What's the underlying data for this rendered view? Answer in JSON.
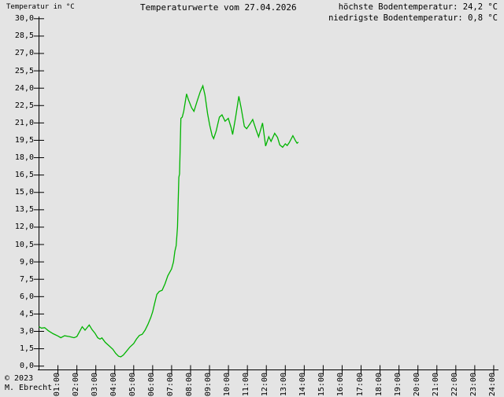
{
  "header": {
    "y_axis_title": "Temperatur in °C",
    "title": "Temperaturwerte vom 27.04.2026",
    "max_label": "höchste Bodentemperatur: 24,2 °C",
    "min_label": "niedrigste Bodentemperatur: 0,8 °C"
  },
  "footer": {
    "copyright": "© 2023",
    "author": "M. Ebrecht"
  },
  "colors": {
    "background": "#e4e4e4",
    "line": "#00b400",
    "axis": "#000000",
    "text": "#000000"
  },
  "chart_data": {
    "type": "line",
    "title": "Temperaturwerte vom 27.04.2026",
    "ylabel": "Temperatur in °C",
    "xlabel": "",
    "grid": false,
    "legend_position": "none",
    "ylim": [
      0.0,
      30.0
    ],
    "y_tick_step": 1.5,
    "y_tick_labels": [
      "0,0",
      "1,5",
      "3,0",
      "4,5",
      "6,0",
      "7,5",
      "9,0",
      "10,5",
      "12,0",
      "13,5",
      "15,0",
      "16,5",
      "18,0",
      "19,5",
      "21,0",
      "22,5",
      "24,0",
      "25,5",
      "27,0",
      "28,5",
      "30,0"
    ],
    "xlim_hours": [
      0,
      24
    ],
    "x_tick_hours": [
      1,
      2,
      3,
      4,
      5,
      6,
      7,
      8,
      9,
      10,
      11,
      12,
      13,
      14,
      15,
      16,
      17,
      18,
      19,
      20,
      21,
      22,
      23,
      24
    ],
    "x_tick_labels": [
      "01:00",
      "02:00",
      "03:00",
      "04:00",
      "05:00",
      "06:00",
      "07:00",
      "08:00",
      "09:00",
      "10:00",
      "11:00",
      "12:00",
      "13:00",
      "14:00",
      "15:00",
      "16:00",
      "17:00",
      "18:00",
      "19:00",
      "20:00",
      "21:00",
      "22:00",
      "23:00",
      "24:00"
    ],
    "stats": {
      "max_c": "24,2",
      "min_c": "0,8"
    },
    "series": [
      {
        "name": "Bodentemperatur",
        "color": "#00b400",
        "points_hours_degc": [
          [
            0,
            3.4
          ],
          [
            0.13,
            3.28
          ],
          [
            0.3,
            3.32
          ],
          [
            0.5,
            3.05
          ],
          [
            0.75,
            2.8
          ],
          [
            1,
            2.6
          ],
          [
            1.15,
            2.45
          ],
          [
            1.35,
            2.62
          ],
          [
            1.6,
            2.55
          ],
          [
            1.85,
            2.45
          ],
          [
            2,
            2.55
          ],
          [
            2.1,
            2.85
          ],
          [
            2.28,
            3.4
          ],
          [
            2.43,
            3.1
          ],
          [
            2.65,
            3.55
          ],
          [
            2.8,
            3.15
          ],
          [
            2.95,
            2.85
          ],
          [
            3.1,
            2.45
          ],
          [
            3.22,
            2.33
          ],
          [
            3.32,
            2.44
          ],
          [
            3.5,
            2.05
          ],
          [
            3.7,
            1.75
          ],
          [
            3.9,
            1.45
          ],
          [
            4.05,
            1.1
          ],
          [
            4.2,
            0.85
          ],
          [
            4.32,
            0.8
          ],
          [
            4.45,
            0.95
          ],
          [
            4.6,
            1.25
          ],
          [
            4.8,
            1.65
          ],
          [
            5,
            1.95
          ],
          [
            5.15,
            2.35
          ],
          [
            5.3,
            2.65
          ],
          [
            5.45,
            2.75
          ],
          [
            5.6,
            3.1
          ],
          [
            5.75,
            3.6
          ],
          [
            5.9,
            4.2
          ],
          [
            6,
            4.7
          ],
          [
            6.1,
            5.4
          ],
          [
            6.22,
            6.2
          ],
          [
            6.35,
            6.45
          ],
          [
            6.5,
            6.55
          ],
          [
            6.65,
            7.1
          ],
          [
            6.8,
            7.8
          ],
          [
            7,
            8.4
          ],
          [
            7.1,
            9
          ],
          [
            7.17,
            9.9
          ],
          [
            7.24,
            10.4
          ],
          [
            7.31,
            12
          ],
          [
            7.38,
            16.3
          ],
          [
            7.42,
            16.6
          ],
          [
            7.49,
            21.4
          ],
          [
            7.56,
            21.5
          ],
          [
            7.64,
            22
          ],
          [
            7.79,
            23.5
          ],
          [
            7.89,
            23
          ],
          [
            8.06,
            22.3
          ],
          [
            8.18,
            22
          ],
          [
            8.35,
            22.9
          ],
          [
            8.51,
            23.7
          ],
          [
            8.65,
            24.2
          ],
          [
            8.76,
            23.4
          ],
          [
            8.9,
            21.8
          ],
          [
            9.01,
            20.8
          ],
          [
            9.14,
            19.9
          ],
          [
            9.22,
            19.65
          ],
          [
            9.35,
            20.3
          ],
          [
            9.52,
            21.5
          ],
          [
            9.66,
            21.7
          ],
          [
            9.82,
            21.15
          ],
          [
            9.99,
            21.4
          ],
          [
            10.14,
            20.6
          ],
          [
            10.22,
            20
          ],
          [
            10.38,
            21.5
          ],
          [
            10.55,
            23.3
          ],
          [
            10.67,
            22.3
          ],
          [
            10.84,
            20.7
          ],
          [
            10.96,
            20.5
          ],
          [
            11.13,
            20.9
          ],
          [
            11.28,
            21.3
          ],
          [
            11.46,
            20.4
          ],
          [
            11.59,
            19.8
          ],
          [
            11.8,
            21
          ],
          [
            11.96,
            19
          ],
          [
            12.13,
            19.8
          ],
          [
            12.25,
            19.4
          ],
          [
            12.44,
            20.1
          ],
          [
            12.59,
            19.75
          ],
          [
            12.71,
            19.1
          ],
          [
            12.86,
            18.9
          ],
          [
            13,
            19.2
          ],
          [
            13.1,
            19.05
          ],
          [
            13.21,
            19.3
          ],
          [
            13.4,
            19.9
          ],
          [
            13.54,
            19.45
          ],
          [
            13.62,
            19.25
          ],
          [
            13.69,
            19.35
          ]
        ]
      }
    ]
  }
}
